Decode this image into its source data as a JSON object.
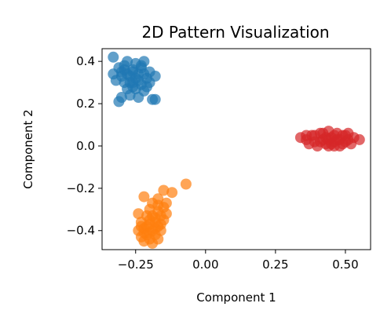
{
  "chart_data": {
    "type": "scatter",
    "title": "2D Pattern Visualization",
    "xlabel": "Component 1",
    "ylabel": "Component 2",
    "xlim": [
      -0.37,
      0.59
    ],
    "ylim": [
      -0.49,
      0.46
    ],
    "xticks": [
      -0.25,
      0.0,
      0.25,
      0.5
    ],
    "xtick_labels": [
      "−0.25",
      "0.00",
      "0.25",
      "0.50"
    ],
    "yticks": [
      -0.4,
      -0.2,
      0.0,
      0.2,
      0.4
    ],
    "ytick_labels": [
      "−0.4",
      "−0.2",
      "0.0",
      "0.2",
      "0.4"
    ],
    "grid": false,
    "series": [
      {
        "color": "#1f77b4",
        "points": [
          [
            -0.33,
            0.42
          ],
          [
            -0.22,
            0.4
          ],
          [
            -0.28,
            0.4
          ],
          [
            -0.25,
            0.39
          ],
          [
            -0.31,
            0.37
          ],
          [
            -0.29,
            0.36
          ],
          [
            -0.26,
            0.36
          ],
          [
            -0.23,
            0.37
          ],
          [
            -0.2,
            0.35
          ],
          [
            -0.33,
            0.34
          ],
          [
            -0.3,
            0.33
          ],
          [
            -0.27,
            0.33
          ],
          [
            -0.24,
            0.34
          ],
          [
            -0.21,
            0.32
          ],
          [
            -0.32,
            0.31
          ],
          [
            -0.29,
            0.3
          ],
          [
            -0.26,
            0.3
          ],
          [
            -0.23,
            0.29
          ],
          [
            -0.2,
            0.3
          ],
          [
            -0.28,
            0.27
          ],
          [
            -0.25,
            0.27
          ],
          [
            -0.22,
            0.26
          ],
          [
            -0.27,
            0.24
          ],
          [
            -0.24,
            0.23
          ],
          [
            -0.3,
            0.23
          ],
          [
            -0.31,
            0.21
          ],
          [
            -0.18,
            0.22
          ],
          [
            -0.19,
            0.22
          ],
          [
            -0.26,
            0.35
          ],
          [
            -0.24,
            0.31
          ],
          [
            -0.28,
            0.34
          ],
          [
            -0.22,
            0.34
          ],
          [
            -0.3,
            0.35
          ],
          [
            -0.25,
            0.32
          ],
          [
            -0.27,
            0.3
          ],
          [
            -0.21,
            0.28
          ],
          [
            -0.23,
            0.38
          ],
          [
            -0.29,
            0.38
          ],
          [
            -0.26,
            0.28
          ],
          [
            -0.18,
            0.33
          ]
        ]
      },
      {
        "color": "#ff7f0e",
        "points": [
          [
            -0.07,
            -0.18
          ],
          [
            -0.15,
            -0.21
          ],
          [
            -0.12,
            -0.22
          ],
          [
            -0.22,
            -0.24
          ],
          [
            -0.17,
            -0.25
          ],
          [
            -0.19,
            -0.27
          ],
          [
            -0.15,
            -0.29
          ],
          [
            -0.2,
            -0.3
          ],
          [
            -0.17,
            -0.31
          ],
          [
            -0.14,
            -0.32
          ],
          [
            -0.24,
            -0.32
          ],
          [
            -0.21,
            -0.33
          ],
          [
            -0.18,
            -0.34
          ],
          [
            -0.15,
            -0.35
          ],
          [
            -0.23,
            -0.36
          ],
          [
            -0.2,
            -0.37
          ],
          [
            -0.17,
            -0.38
          ],
          [
            -0.22,
            -0.39
          ],
          [
            -0.19,
            -0.4
          ],
          [
            -0.24,
            -0.4
          ],
          [
            -0.16,
            -0.4
          ],
          [
            -0.21,
            -0.42
          ],
          [
            -0.18,
            -0.42
          ],
          [
            -0.23,
            -0.43
          ],
          [
            -0.2,
            -0.44
          ],
          [
            -0.17,
            -0.44
          ],
          [
            -0.22,
            -0.45
          ],
          [
            -0.19,
            -0.46
          ],
          [
            -0.21,
            -0.38
          ],
          [
            -0.18,
            -0.36
          ],
          [
            -0.16,
            -0.33
          ],
          [
            -0.19,
            -0.33
          ],
          [
            -0.22,
            -0.41
          ],
          [
            -0.2,
            -0.35
          ],
          [
            -0.17,
            -0.28
          ],
          [
            -0.14,
            -0.27
          ],
          [
            -0.18,
            -0.39
          ],
          [
            -0.2,
            -0.41
          ],
          [
            -0.16,
            -0.37
          ],
          [
            -0.23,
            -0.38
          ]
        ]
      },
      {
        "color": "#d62728",
        "points": [
          [
            0.34,
            0.04
          ],
          [
            0.36,
            0.03
          ],
          [
            0.38,
            0.05
          ],
          [
            0.39,
            0.02
          ],
          [
            0.41,
            0.06
          ],
          [
            0.42,
            0.03
          ],
          [
            0.43,
            0.01
          ],
          [
            0.44,
            0.07
          ],
          [
            0.45,
            0.04
          ],
          [
            0.46,
            0.02
          ],
          [
            0.47,
            0.06
          ],
          [
            0.48,
            0.03
          ],
          [
            0.49,
            0.01
          ],
          [
            0.5,
            0.05
          ],
          [
            0.51,
            0.03
          ],
          [
            0.53,
            0.04
          ],
          [
            0.55,
            0.03
          ],
          [
            0.37,
            0.01
          ],
          [
            0.4,
            0.0
          ],
          [
            0.42,
            0.06
          ],
          [
            0.44,
            0.0
          ],
          [
            0.46,
            0.05
          ],
          [
            0.48,
            0.0
          ],
          [
            0.5,
            0.02
          ],
          [
            0.52,
            0.01
          ],
          [
            0.39,
            0.05
          ],
          [
            0.43,
            0.04
          ],
          [
            0.45,
            0.01
          ],
          [
            0.47,
            0.03
          ],
          [
            0.49,
            0.05
          ],
          [
            0.41,
            0.02
          ],
          [
            0.51,
            0.06
          ],
          [
            0.36,
            0.05
          ],
          [
            0.44,
            0.03
          ],
          [
            0.46,
            0.0
          ]
        ]
      }
    ]
  }
}
